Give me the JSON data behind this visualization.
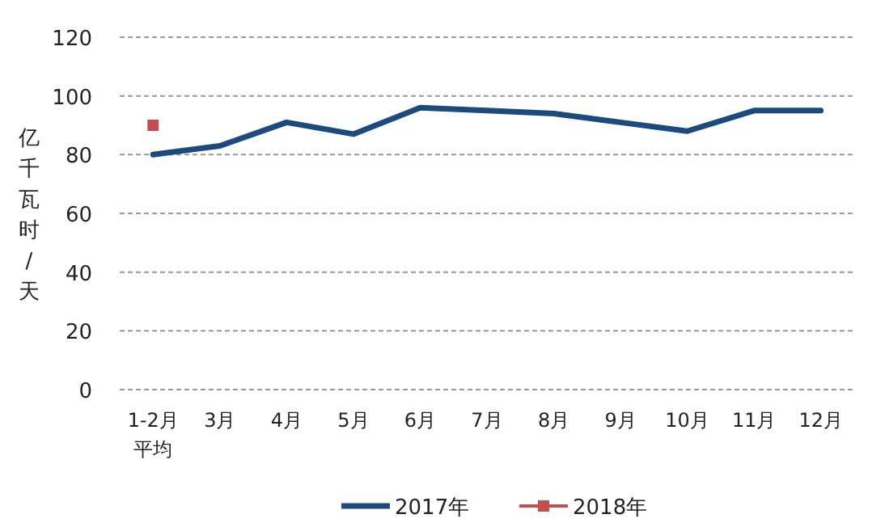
{
  "chart_data": {
    "type": "line",
    "ylabel": "亿千瓦时/天",
    "categories": [
      "1-2月平均",
      "3月",
      "4月",
      "5月",
      "6月",
      "7月",
      "8月",
      "9月",
      "10月",
      "11月",
      "12月"
    ],
    "series": [
      {
        "name": "2017年",
        "color": "#1a4a7e",
        "marker": "none",
        "values": [
          80,
          83,
          91,
          87,
          96,
          95,
          94,
          91,
          88,
          95,
          95
        ]
      },
      {
        "name": "2018年",
        "color": "#c0504d",
        "marker": "square",
        "values": [
          90,
          null,
          null,
          null,
          null,
          null,
          null,
          null,
          null,
          null,
          null
        ]
      }
    ],
    "ylim": [
      0,
      120
    ],
    "yticks": [
      0,
      20,
      40,
      60,
      80,
      100,
      120
    ],
    "grid": "y",
    "legend": "bottom",
    "line_style": "solid"
  }
}
